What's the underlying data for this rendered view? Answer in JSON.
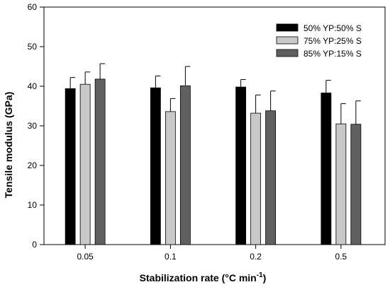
{
  "chart_data": {
    "type": "bar",
    "title": "",
    "xlabel": "Stabilization rate (°C min",
    "xlabel_superscript": "-1",
    "xlabel_suffix": ")",
    "ylabel": "Tensile modulus (GPa)",
    "ylim": [
      0,
      60
    ],
    "yticks": [
      0,
      10,
      20,
      30,
      40,
      50,
      60
    ],
    "categories": [
      "0.05",
      "0.1",
      "0.2",
      "0.5"
    ],
    "legend_position": "top-right",
    "grid": false,
    "series": [
      {
        "name": "50% YP:50% S",
        "color": "#000000",
        "values": [
          39.4,
          39.6,
          39.8,
          38.3
        ],
        "errors": [
          2.8,
          3.0,
          1.9,
          3.2
        ]
      },
      {
        "name": "75% YP:25% S",
        "color": "#c8c8c8",
        "values": [
          40.5,
          33.6,
          33.2,
          30.5
        ],
        "errors": [
          3.1,
          3.3,
          4.6,
          5.1
        ]
      },
      {
        "name": "85% YP:15% S",
        "color": "#606060",
        "values": [
          41.8,
          40.1,
          33.8,
          30.4
        ],
        "errors": [
          3.9,
          4.9,
          5.0,
          5.9
        ]
      }
    ]
  }
}
